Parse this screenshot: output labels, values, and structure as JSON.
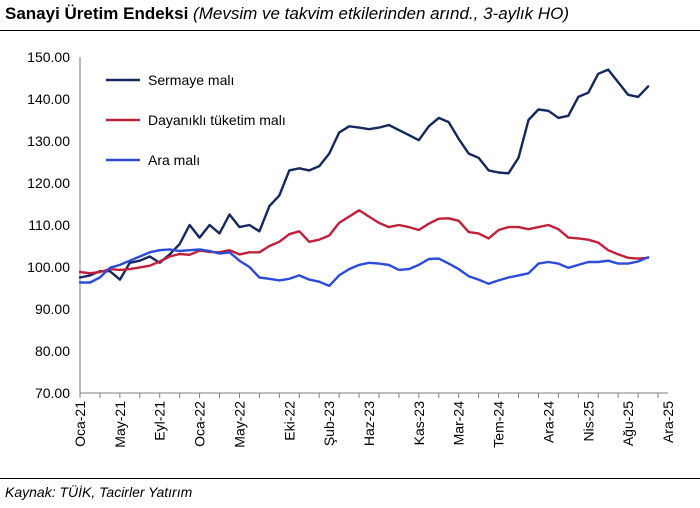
{
  "header": {
    "title": "Sanayi Üretim Endeksi",
    "subtitle": "(Mevsim ve takvim etkilerinden arınd., 3-aylık HO)"
  },
  "footer": {
    "source": "Kaynak: TÜİK, Tacirler Yatırım"
  },
  "chart_data": {
    "type": "line",
    "ylim": [
      70,
      150
    ],
    "yticks": [
      "70.00",
      "80.00",
      "90.00",
      "100.00",
      "110.00",
      "120.00",
      "130.00",
      "140.00",
      "150.00"
    ],
    "grid": false,
    "legend_position": "top-left",
    "x_tick_labels": [
      "Oca-21",
      "May-21",
      "Eyl-21",
      "Oca-22",
      "May-22",
      "Eki-22",
      "Şub-23",
      "Haz-23",
      "Kas-23",
      "Mar-24",
      "Tem-24",
      "Ara-24",
      "Nis-25",
      "Ağu-25",
      "Ara-25"
    ],
    "x_tick_indices": [
      0,
      4,
      8,
      12,
      16,
      21,
      25,
      29,
      34,
      38,
      42,
      47,
      51,
      55,
      59
    ],
    "x_max_index": 59,
    "series": [
      {
        "name": "Sermaye malı",
        "color": "#14285e",
        "values": [
          97.5,
          98.0,
          99.0,
          99.0,
          97.0,
          101.0,
          101.5,
          102.5,
          101.0,
          103.0,
          105.5,
          110.0,
          107.0,
          110.0,
          108.0,
          112.5,
          109.5,
          110.0,
          108.5,
          114.5,
          117.0,
          123.0,
          123.5,
          123.0,
          124.0,
          127.0,
          132.0,
          133.5,
          133.2,
          132.8,
          133.2,
          133.8,
          132.6,
          131.4,
          130.2,
          133.5,
          135.5,
          134.5,
          130.5,
          127.0,
          126.0,
          123.0,
          122.5,
          122.3,
          126.0,
          135.0,
          137.5,
          137.2,
          135.5,
          136.0,
          140.5,
          141.5,
          146.0,
          147.0,
          144.0,
          141.0,
          140.5,
          143.0
        ]
      },
      {
        "name": "Dayanıklı tüketim malı",
        "color": "#c0203a",
        "values": [
          98.8,
          98.5,
          98.8,
          99.5,
          99.3,
          99.5,
          99.9,
          100.3,
          101.3,
          102.5,
          103.1,
          102.9,
          103.9,
          103.6,
          103.5,
          104.0,
          103.0,
          103.5,
          103.5,
          105.0,
          106.0,
          107.8,
          108.5,
          106.0,
          106.5,
          107.5,
          110.5,
          112.0,
          113.5,
          112.0,
          110.5,
          109.5,
          110.0,
          109.5,
          108.8,
          110.3,
          111.5,
          111.6,
          111.0,
          108.3,
          108.0,
          106.8,
          108.8,
          109.5,
          109.5,
          109.0,
          109.5,
          110.0,
          109.0,
          107.0,
          106.8,
          106.5,
          105.8,
          104.0,
          103.0,
          102.2,
          102.0,
          102.2
        ]
      },
      {
        "name": "Ara malı",
        "color": "#2b4bd8",
        "values": [
          96.3,
          96.3,
          97.5,
          99.8,
          100.5,
          101.5,
          102.5,
          103.5,
          104.0,
          104.2,
          103.8,
          104.0,
          104.2,
          103.8,
          103.2,
          103.5,
          101.5,
          100.0,
          97.5,
          97.2,
          96.8,
          97.2,
          98.0,
          97.0,
          96.5,
          95.5,
          98.0,
          99.5,
          100.5,
          101.0,
          100.8,
          100.5,
          99.3,
          99.5,
          100.5,
          101.9,
          102.0,
          100.8,
          99.5,
          97.8,
          97.0,
          96.0,
          96.8,
          97.5,
          98.0,
          98.5,
          100.8,
          101.2,
          100.8,
          99.8,
          100.5,
          101.2,
          101.2,
          101.5,
          100.8,
          100.8,
          101.3,
          102.3
        ]
      }
    ]
  }
}
